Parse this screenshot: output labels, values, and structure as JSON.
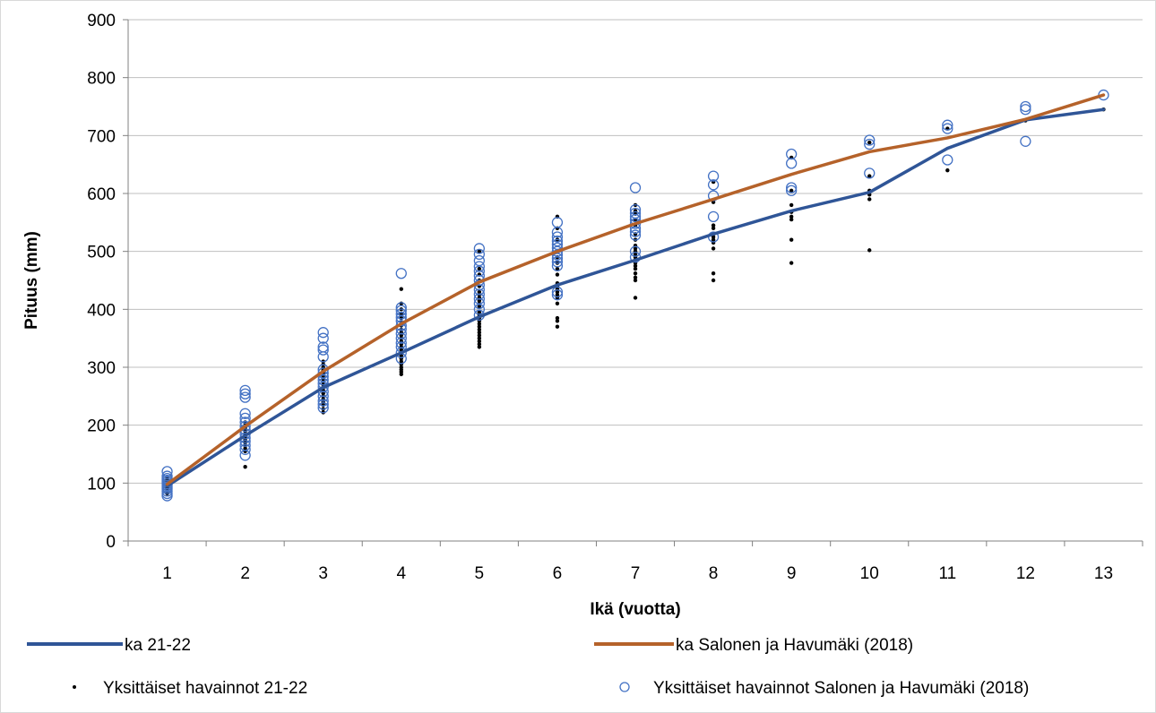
{
  "chart_data": {
    "type": "line",
    "xlabel": "Ikä (vuotta)",
    "ylabel": "Pituus (mm)",
    "xlim": [
      0.5,
      13.5
    ],
    "ylim": [
      0,
      900
    ],
    "x_ticks": [
      1,
      2,
      3,
      4,
      5,
      6,
      7,
      8,
      9,
      10,
      11,
      12,
      13
    ],
    "y_ticks": [
      0,
      100,
      200,
      300,
      400,
      500,
      600,
      700,
      800,
      900
    ],
    "grid": "horizontal",
    "legend_position": "bottom",
    "series": [
      {
        "name": "ka 21-22",
        "kind": "line",
        "color": "#2F5597",
        "x": [
          1,
          2,
          3,
          4,
          5,
          6,
          7,
          8,
          9,
          10,
          11,
          12,
          13
        ],
        "values": [
          95,
          182,
          265,
          325,
          387,
          442,
          485,
          530,
          570,
          602,
          678,
          727,
          745
        ]
      },
      {
        "name": "ka Salonen ja Havumäki (2018)",
        "kind": "line",
        "color": "#B5622A",
        "x": [
          1,
          2,
          3,
          4,
          5,
          6,
          7,
          8,
          9,
          10,
          11,
          12,
          13
        ],
        "values": [
          98,
          198,
          293,
          375,
          447,
          500,
          548,
          590,
          633,
          672,
          696,
          728,
          770
        ]
      },
      {
        "name": "Yksittäiset havainnot 21-22",
        "kind": "scatter",
        "marker": "dot",
        "color": "#000000",
        "points": [
          [
            1,
            82
          ],
          [
            1,
            85
          ],
          [
            1,
            88
          ],
          [
            1,
            90
          ],
          [
            1,
            92
          ],
          [
            1,
            94
          ],
          [
            1,
            96
          ],
          [
            1,
            98
          ],
          [
            1,
            100
          ],
          [
            1,
            103
          ],
          [
            1,
            106
          ],
          [
            1,
            110
          ],
          [
            2,
            128
          ],
          [
            2,
            155
          ],
          [
            2,
            160
          ],
          [
            2,
            165
          ],
          [
            2,
            170
          ],
          [
            2,
            175
          ],
          [
            2,
            180
          ],
          [
            2,
            185
          ],
          [
            2,
            190
          ],
          [
            2,
            195
          ],
          [
            2,
            200
          ],
          [
            2,
            205
          ],
          [
            3,
            222
          ],
          [
            3,
            228
          ],
          [
            3,
            235
          ],
          [
            3,
            240
          ],
          [
            3,
            245
          ],
          [
            3,
            250
          ],
          [
            3,
            255
          ],
          [
            3,
            260
          ],
          [
            3,
            265
          ],
          [
            3,
            270
          ],
          [
            3,
            275
          ],
          [
            3,
            280
          ],
          [
            3,
            285
          ],
          [
            3,
            290
          ],
          [
            3,
            295
          ],
          [
            3,
            300
          ],
          [
            3,
            305
          ],
          [
            3,
            310
          ],
          [
            4,
            288
          ],
          [
            4,
            292
          ],
          [
            4,
            296
          ],
          [
            4,
            300
          ],
          [
            4,
            305
          ],
          [
            4,
            310
          ],
          [
            4,
            315
          ],
          [
            4,
            320
          ],
          [
            4,
            325
          ],
          [
            4,
            330
          ],
          [
            4,
            335
          ],
          [
            4,
            340
          ],
          [
            4,
            345
          ],
          [
            4,
            350
          ],
          [
            4,
            355
          ],
          [
            4,
            360
          ],
          [
            4,
            365
          ],
          [
            4,
            372
          ],
          [
            4,
            378
          ],
          [
            4,
            385
          ],
          [
            4,
            392
          ],
          [
            4,
            400
          ],
          [
            4,
            410
          ],
          [
            4,
            435
          ],
          [
            5,
            335
          ],
          [
            5,
            340
          ],
          [
            5,
            345
          ],
          [
            5,
            350
          ],
          [
            5,
            355
          ],
          [
            5,
            360
          ],
          [
            5,
            365
          ],
          [
            5,
            370
          ],
          [
            5,
            375
          ],
          [
            5,
            380
          ],
          [
            5,
            385
          ],
          [
            5,
            390
          ],
          [
            5,
            395
          ],
          [
            5,
            405
          ],
          [
            5,
            410
          ],
          [
            5,
            415
          ],
          [
            5,
            420
          ],
          [
            5,
            425
          ],
          [
            5,
            430
          ],
          [
            5,
            440
          ],
          [
            5,
            450
          ],
          [
            5,
            460
          ],
          [
            5,
            470
          ],
          [
            5,
            500
          ],
          [
            6,
            370
          ],
          [
            6,
            380
          ],
          [
            6,
            385
          ],
          [
            6,
            410
          ],
          [
            6,
            420
          ],
          [
            6,
            425
          ],
          [
            6,
            430
          ],
          [
            6,
            435
          ],
          [
            6,
            440
          ],
          [
            6,
            445
          ],
          [
            6,
            460
          ],
          [
            6,
            470
          ],
          [
            6,
            480
          ],
          [
            6,
            490
          ],
          [
            6,
            500
          ],
          [
            6,
            520
          ],
          [
            6,
            540
          ],
          [
            6,
            560
          ],
          [
            7,
            420
          ],
          [
            7,
            450
          ],
          [
            7,
            455
          ],
          [
            7,
            462
          ],
          [
            7,
            470
          ],
          [
            7,
            475
          ],
          [
            7,
            480
          ],
          [
            7,
            485
          ],
          [
            7,
            490
          ],
          [
            7,
            495
          ],
          [
            7,
            500
          ],
          [
            7,
            505
          ],
          [
            7,
            510
          ],
          [
            7,
            520
          ],
          [
            7,
            530
          ],
          [
            7,
            545
          ],
          [
            7,
            555
          ],
          [
            7,
            565
          ],
          [
            7,
            570
          ],
          [
            7,
            580
          ],
          [
            8,
            450
          ],
          [
            8,
            462
          ],
          [
            8,
            505
          ],
          [
            8,
            515
          ],
          [
            8,
            520
          ],
          [
            8,
            525
          ],
          [
            8,
            530
          ],
          [
            8,
            540
          ],
          [
            8,
            545
          ],
          [
            8,
            585
          ],
          [
            8,
            620
          ],
          [
            9,
            480
          ],
          [
            9,
            520
          ],
          [
            9,
            555
          ],
          [
            9,
            560
          ],
          [
            9,
            568
          ],
          [
            9,
            580
          ],
          [
            9,
            605
          ],
          [
            9,
            662
          ],
          [
            10,
            502
          ],
          [
            10,
            590
          ],
          [
            10,
            598
          ],
          [
            10,
            605
          ],
          [
            10,
            630
          ],
          [
            10,
            688
          ],
          [
            11,
            640
          ],
          [
            11,
            712
          ],
          [
            12,
            726
          ],
          [
            13,
            745
          ]
        ]
      },
      {
        "name": "Yksittäiset havainnot Salonen ja Havumäki (2018)",
        "kind": "scatter",
        "marker": "open-circle",
        "color": "#4472C4",
        "points": [
          [
            1,
            78
          ],
          [
            1,
            82
          ],
          [
            1,
            86
          ],
          [
            1,
            90
          ],
          [
            1,
            93
          ],
          [
            1,
            96
          ],
          [
            1,
            99
          ],
          [
            1,
            102
          ],
          [
            1,
            105
          ],
          [
            1,
            108
          ],
          [
            1,
            112
          ],
          [
            1,
            120
          ],
          [
            2,
            148
          ],
          [
            2,
            158
          ],
          [
            2,
            165
          ],
          [
            2,
            172
          ],
          [
            2,
            178
          ],
          [
            2,
            185
          ],
          [
            2,
            192
          ],
          [
            2,
            198
          ],
          [
            2,
            205
          ],
          [
            2,
            212
          ],
          [
            2,
            220
          ],
          [
            2,
            248
          ],
          [
            2,
            254
          ],
          [
            2,
            260
          ],
          [
            3,
            230
          ],
          [
            3,
            236
          ],
          [
            3,
            242
          ],
          [
            3,
            250
          ],
          [
            3,
            258
          ],
          [
            3,
            266
          ],
          [
            3,
            272
          ],
          [
            3,
            278
          ],
          [
            3,
            284
          ],
          [
            3,
            290
          ],
          [
            3,
            296
          ],
          [
            3,
            318
          ],
          [
            3,
            330
          ],
          [
            3,
            335
          ],
          [
            3,
            350
          ],
          [
            3,
            360
          ],
          [
            4,
            315
          ],
          [
            4,
            325
          ],
          [
            4,
            335
          ],
          [
            4,
            342
          ],
          [
            4,
            350
          ],
          [
            4,
            358
          ],
          [
            4,
            366
          ],
          [
            4,
            372
          ],
          [
            4,
            380
          ],
          [
            4,
            386
          ],
          [
            4,
            392
          ],
          [
            4,
            398
          ],
          [
            4,
            403
          ],
          [
            4,
            462
          ],
          [
            5,
            390
          ],
          [
            5,
            400
          ],
          [
            5,
            410
          ],
          [
            5,
            418
          ],
          [
            5,
            426
          ],
          [
            5,
            434
          ],
          [
            5,
            442
          ],
          [
            5,
            450
          ],
          [
            5,
            458
          ],
          [
            5,
            466
          ],
          [
            5,
            474
          ],
          [
            5,
            484
          ],
          [
            5,
            495
          ],
          [
            5,
            505
          ],
          [
            6,
            425
          ],
          [
            6,
            430
          ],
          [
            6,
            475
          ],
          [
            6,
            482
          ],
          [
            6,
            488
          ],
          [
            6,
            494
          ],
          [
            6,
            500
          ],
          [
            6,
            506
          ],
          [
            6,
            512
          ],
          [
            6,
            518
          ],
          [
            6,
            525
          ],
          [
            6,
            533
          ],
          [
            6,
            550
          ],
          [
            7,
            490
          ],
          [
            7,
            500
          ],
          [
            7,
            528
          ],
          [
            7,
            534
          ],
          [
            7,
            540
          ],
          [
            7,
            548
          ],
          [
            7,
            555
          ],
          [
            7,
            560
          ],
          [
            7,
            566
          ],
          [
            7,
            572
          ],
          [
            7,
            610
          ],
          [
            8,
            525
          ],
          [
            8,
            560
          ],
          [
            8,
            596
          ],
          [
            8,
            615
          ],
          [
            8,
            630
          ],
          [
            9,
            605
          ],
          [
            9,
            610
          ],
          [
            9,
            652
          ],
          [
            9,
            668
          ],
          [
            10,
            635
          ],
          [
            10,
            685
          ],
          [
            10,
            692
          ],
          [
            11,
            658
          ],
          [
            11,
            712
          ],
          [
            11,
            718
          ],
          [
            12,
            690
          ],
          [
            12,
            745
          ],
          [
            12,
            750
          ],
          [
            13,
            770
          ]
        ]
      }
    ]
  }
}
